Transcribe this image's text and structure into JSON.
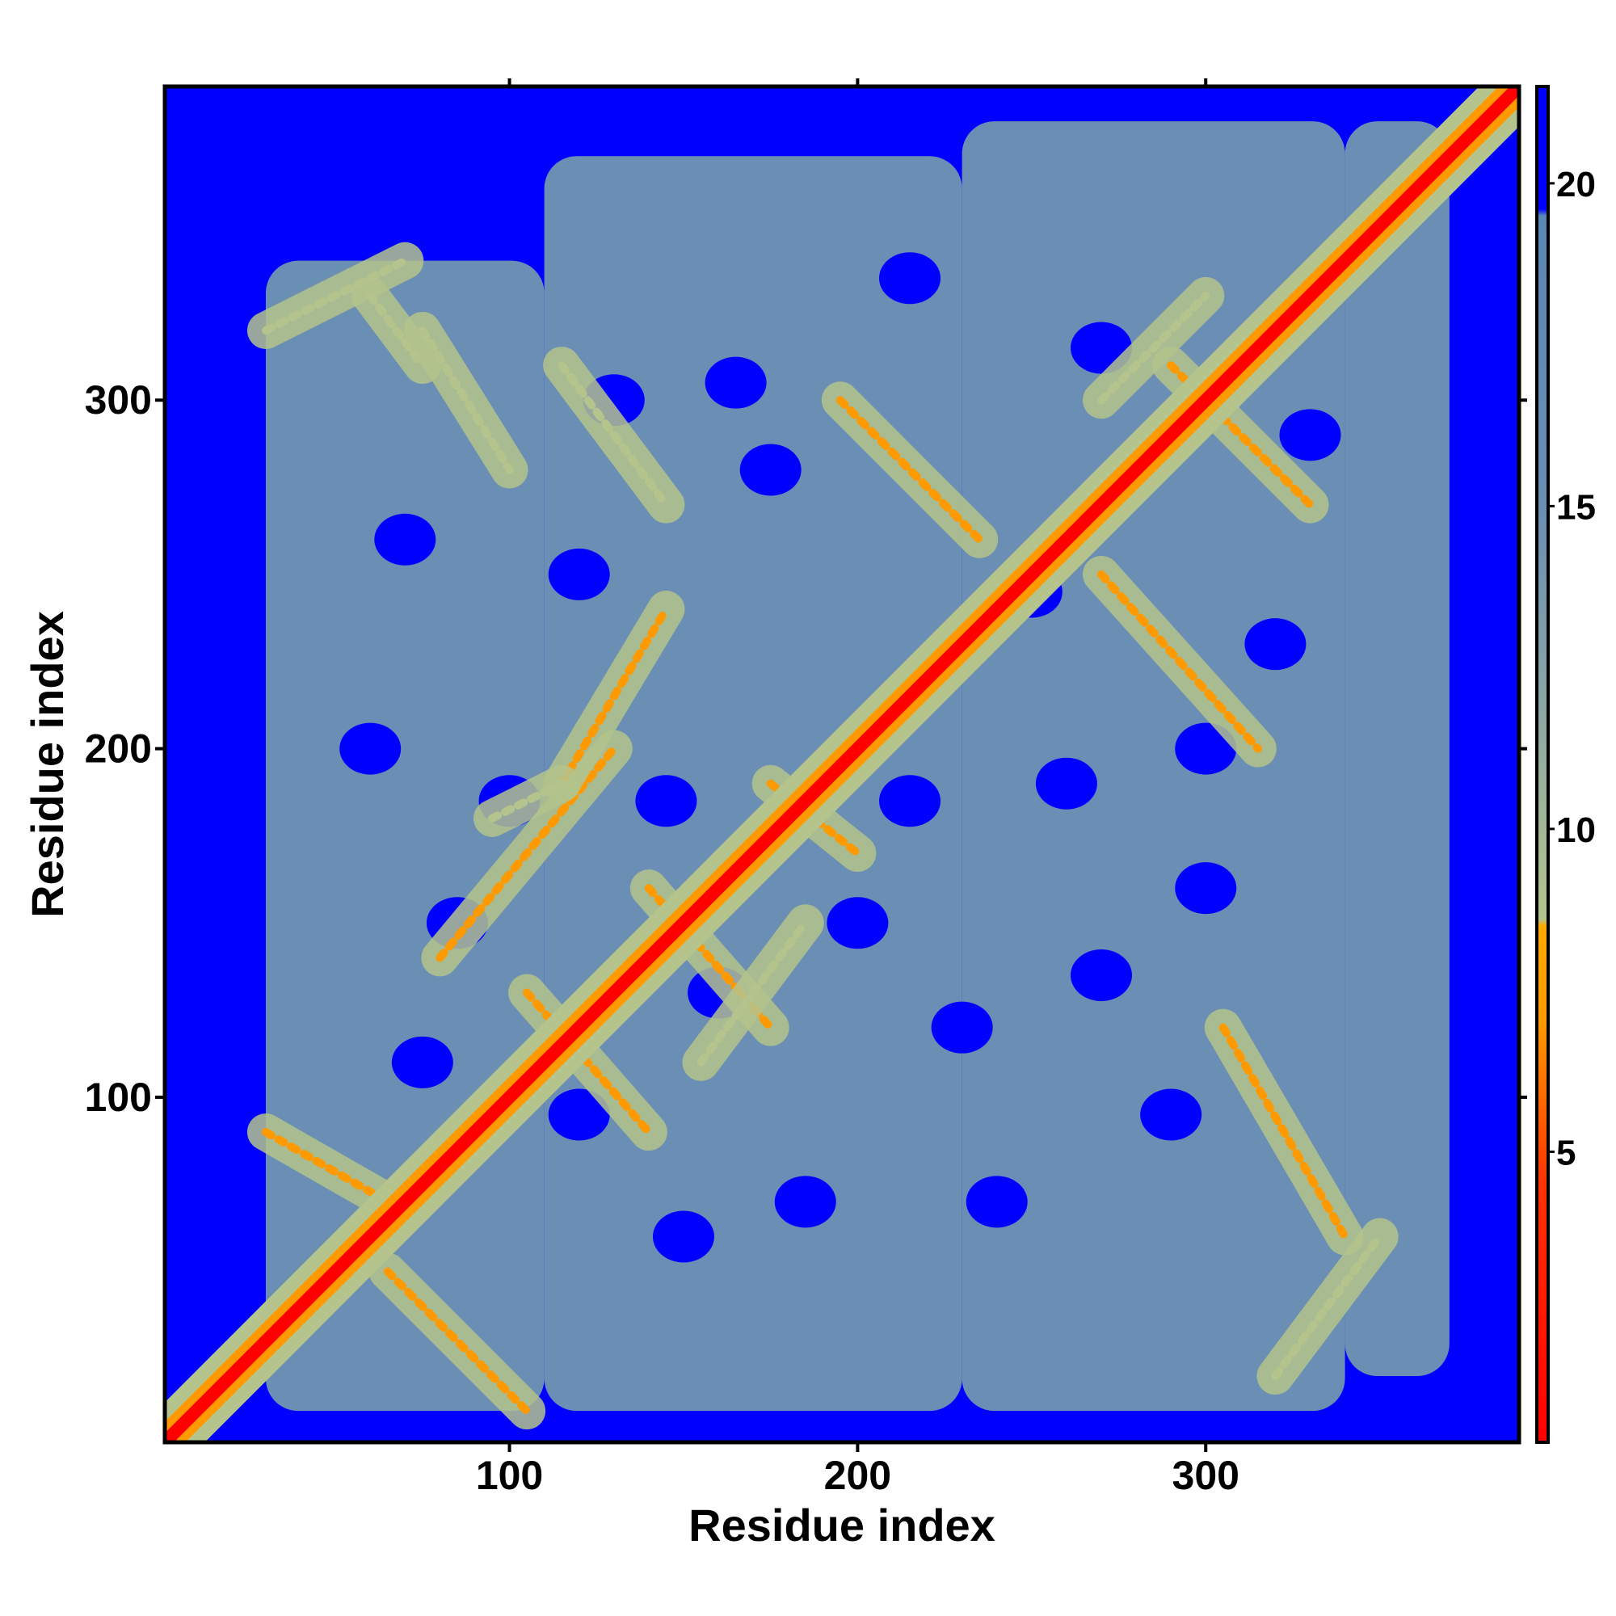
{
  "chart_data": {
    "type": "heatmap",
    "title": "",
    "xlabel": "Residue index",
    "ylabel": "Residue index",
    "x_range": [
      1,
      390
    ],
    "y_range": [
      1,
      390
    ],
    "x_ticks": [
      100,
      200,
      300
    ],
    "y_ticks": [
      100,
      200,
      300
    ],
    "colorbar": {
      "range": [
        0.5,
        21.5
      ],
      "ticks": [
        5,
        10,
        15,
        20
      ],
      "stops": [
        {
          "value": 0.5,
          "color": "#ff0000"
        },
        {
          "value": 4.5,
          "color": "#ff3300"
        },
        {
          "value": 7.0,
          "color": "#ff9900"
        },
        {
          "value": 8.5,
          "color": "#ffaa00"
        },
        {
          "value": 8.6,
          "color": "#b4c48c"
        },
        {
          "value": 12.0,
          "color": "#8aa6a6"
        },
        {
          "value": 15.0,
          "color": "#6a8eb4"
        },
        {
          "value": 19.5,
          "color": "#5a87b6"
        },
        {
          "value": 19.6,
          "color": "#0000ff"
        },
        {
          "value": 21.5,
          "color": "#0000ff"
        }
      ]
    },
    "background_color": "#0000ff",
    "diagonal": {
      "from": 1,
      "to": 390,
      "color": "#ff0000"
    },
    "contact_regions": [
      {
        "x": [
          30,
          110
        ],
        "y": [
          10,
          340
        ],
        "value": 16
      },
      {
        "x": [
          110,
          230
        ],
        "y": [
          10,
          370
        ],
        "value": 16
      },
      {
        "x": [
          230,
          340
        ],
        "y": [
          10,
          380
        ],
        "value": 16
      },
      {
        "x": [
          340,
          370
        ],
        "y": [
          20,
          380
        ],
        "value": 16
      }
    ],
    "anti_diagonal_bands": [
      {
        "x": [
          65,
          105
        ],
        "y": [
          50,
          10
        ],
        "value": 8
      },
      {
        "x": [
          30,
          65
        ],
        "y": [
          90,
          70
        ],
        "value": 8
      },
      {
        "x": [
          105,
          140
        ],
        "y": [
          130,
          90
        ],
        "value": 8
      },
      {
        "x": [
          140,
          175
        ],
        "y": [
          160,
          120
        ],
        "value": 8
      },
      {
        "x": [
          175,
          200
        ],
        "y": [
          190,
          170
        ],
        "value": 8
      },
      {
        "x": [
          290,
          330
        ],
        "y": [
          310,
          270
        ],
        "value": 8
      },
      {
        "x": [
          30,
          70
        ],
        "y": [
          320,
          340
        ],
        "value": 9
      },
      {
        "x": [
          320,
          350
        ],
        "y": [
          20,
          60
        ],
        "value": 9
      }
    ],
    "parallel_bands": [
      {
        "x": [
          80,
          130
        ],
        "y": [
          140,
          200
        ],
        "value": 8
      },
      {
        "x": [
          115,
          145
        ],
        "y": [
          190,
          240
        ],
        "value": 8
      },
      {
        "x": [
          95,
          115
        ],
        "y": [
          180,
          190
        ],
        "value": 9
      },
      {
        "x": [
          155,
          185
        ],
        "y": [
          110,
          150
        ],
        "value": 9
      },
      {
        "x": [
          270,
          315
        ],
        "y": [
          250,
          200
        ],
        "value": 8
      },
      {
        "x": [
          195,
          235
        ],
        "y": [
          300,
          260
        ],
        "value": 8
      },
      {
        "x": [
          75,
          100
        ],
        "y": [
          320,
          280
        ],
        "value": 9
      },
      {
        "x": [
          115,
          145
        ],
        "y": [
          310,
          270
        ],
        "value": 9
      },
      {
        "x": [
          60,
          75
        ],
        "y": [
          330,
          310
        ],
        "value": 9
      },
      {
        "x": [
          305,
          340
        ],
        "y": [
          120,
          60
        ],
        "value": 8
      },
      {
        "x": [
          270,
          300
        ],
        "y": [
          300,
          330
        ],
        "value": 9
      }
    ],
    "grid": false,
    "legend": "none"
  }
}
